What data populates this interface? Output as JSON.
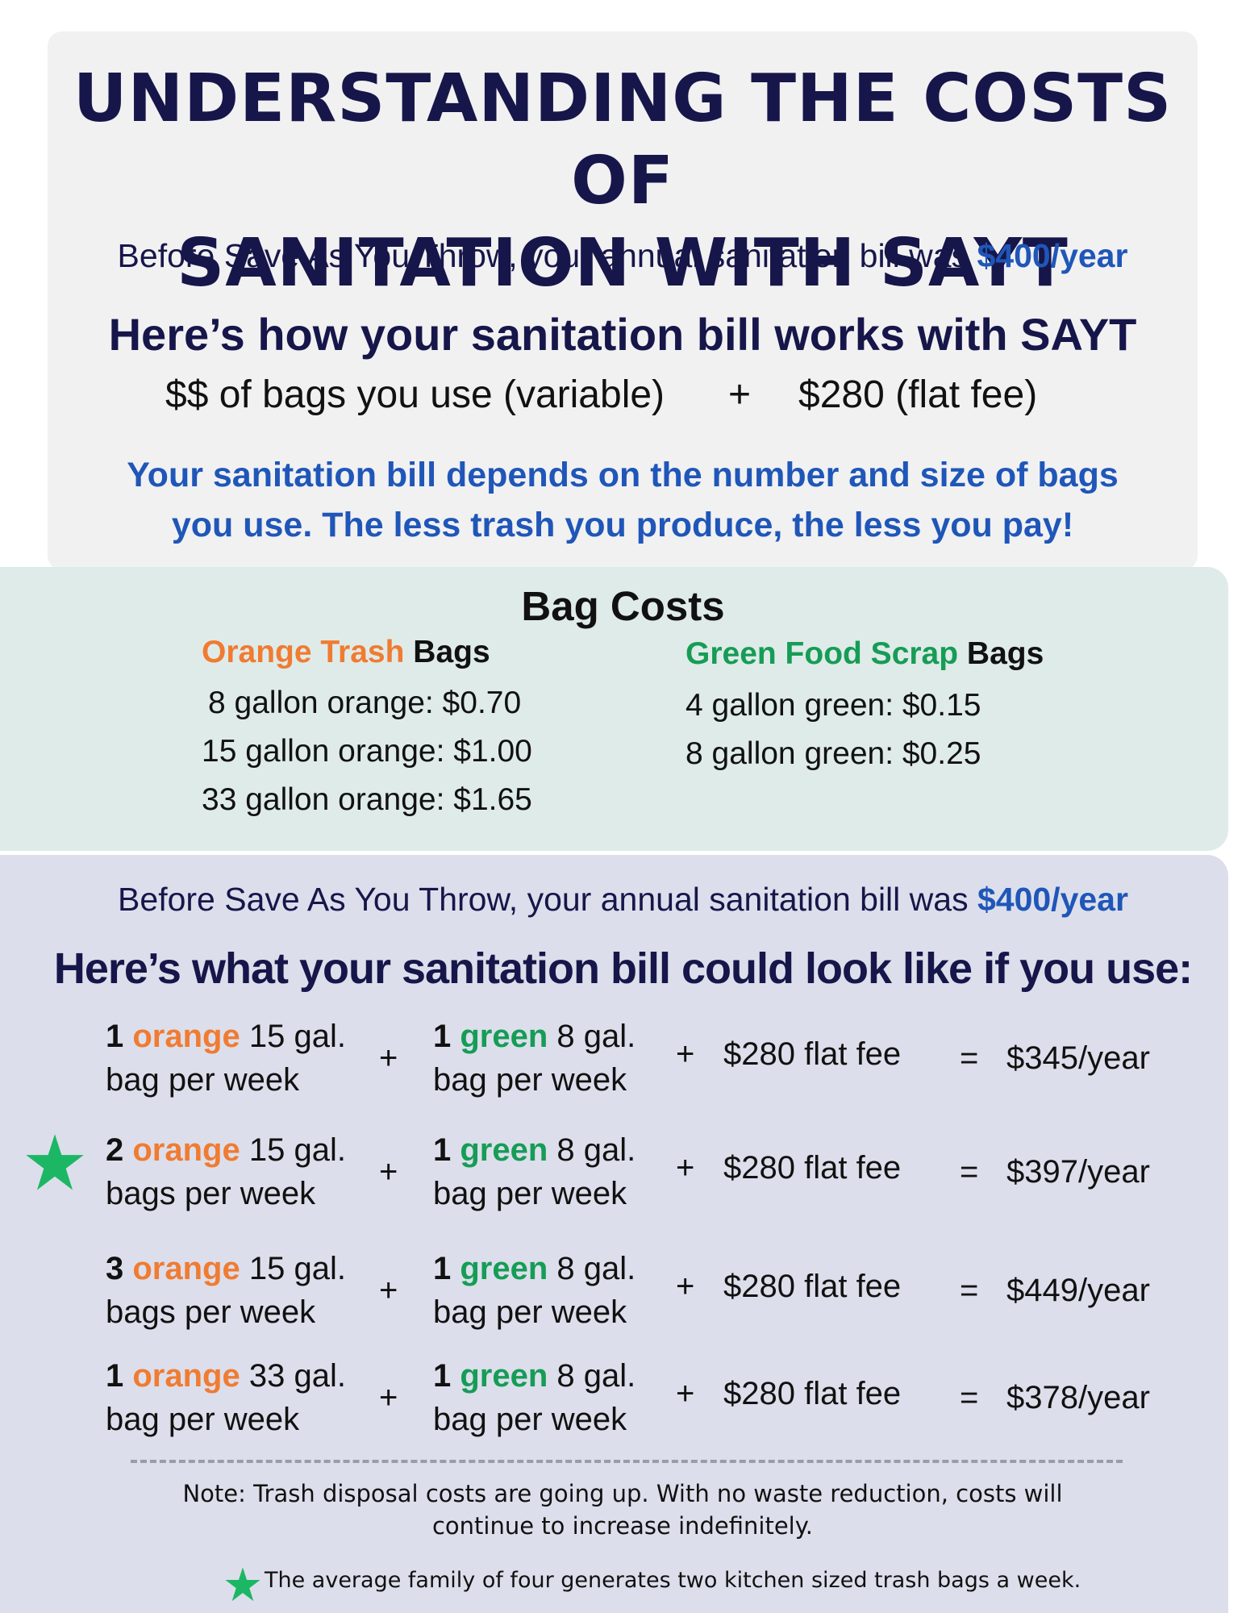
{
  "title": {
    "line1": "UNDERSTANDING THE COSTS OF",
    "line2": "SANITATION WITH SAYT"
  },
  "intro": {
    "text": "Before Save As You Throw, your annual sanitation bill was ",
    "amount": "$400/year"
  },
  "how_it_works": {
    "heading": "Here’s how your sanitation bill works with SAYT",
    "variable": "$$ of bags you use (variable)",
    "plus": "+",
    "flat": "$280 (flat fee)",
    "note_line1": "Your sanitation bill depends on the number and size of bags",
    "note_line2": "you use. The less trash you produce, the less you pay!"
  },
  "bag_costs": {
    "title": "Bag Costs",
    "orange": {
      "color_word": "Orange Trash",
      "suffix": " Bags",
      "items": [
        "8 gallon orange: $0.70",
        "15 gallon orange: $1.00",
        "33 gallon orange: $1.65"
      ]
    },
    "green": {
      "color_word": "Green Food Scrap",
      "suffix": " Bags",
      "items": [
        "4 gallon green: $0.15",
        "8 gallon green: $0.25"
      ]
    }
  },
  "scenarios": {
    "intro_text": "Before Save As You Throw, your annual sanitation bill was ",
    "intro_amount": "$400/year",
    "heading": "Here’s what your sanitation bill could look like if you use:",
    "rows": [
      {
        "o_count": "1",
        "o_word": "orange",
        "o_size": " 15 gal.",
        "o_line2": "bag per week",
        "g_count": "1",
        "g_word": "green",
        "g_size": " 8 gal.",
        "g_line2": "bag per week",
        "plus": "+",
        "fee": "$280 flat fee",
        "eq": "=",
        "total": "$345/year"
      },
      {
        "o_count": "2",
        "o_word": "orange",
        "o_size": " 15 gal.",
        "o_line2": "bags per week",
        "g_count": "1",
        "g_word": "green",
        "g_size": " 8 gal.",
        "g_line2": "bag per week",
        "plus": "+",
        "fee": "$280 flat fee",
        "eq": "=",
        "total": "$397/year"
      },
      {
        "o_count": "3",
        "o_word": "orange",
        "o_size": " 15 gal.",
        "o_line2": "bags per week",
        "g_count": "1",
        "g_word": "green",
        "g_size": " 8 gal.",
        "g_line2": "bag per week",
        "plus": "+",
        "fee": "$280 flat fee",
        "eq": "=",
        "total": "$449/year"
      },
      {
        "o_count": "1",
        "o_word": "orange",
        "o_size": " 33 gal.",
        "o_line2": "bag per week",
        "g_count": "1",
        "g_word": "green",
        "g_size": " 8 gal.",
        "g_line2": "bag per week",
        "plus": "+",
        "fee": "$280 flat fee",
        "eq": "=",
        "total": "$378/year"
      }
    ]
  },
  "footer": {
    "note_line1": "Note: Trash disposal costs are going up. With no waste reduction, costs will",
    "note_line2": "continue to increase indefinitely.",
    "average": "The average family of four generates two kitchen sized trash bags a week."
  },
  "icons": {
    "star": "star-icon"
  },
  "colors": {
    "navy": "#17164a",
    "blue": "#1f56b8",
    "orange": "#f07b32",
    "green": "#169c56",
    "star": "#1cb764"
  }
}
